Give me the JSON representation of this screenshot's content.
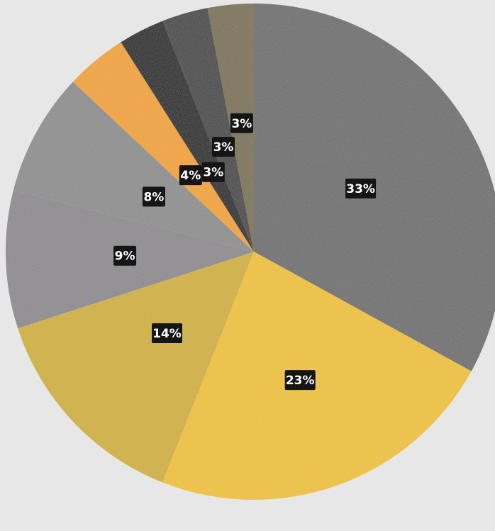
{
  "chart_data": {
    "type": "pie",
    "title": "",
    "start": "12 o'clock",
    "direction": "clockwise",
    "values": [
      33,
      23,
      14,
      9,
      8,
      4,
      3,
      3,
      3
    ],
    "labels": [
      "33%",
      "23%",
      "14%",
      "9%",
      "8%",
      "4%",
      "3%",
      "3%",
      "3%"
    ],
    "colors": [
      "#6f6f6f",
      "#f2c42e",
      "#d3b336",
      "#8f8c91",
      "#909090",
      "#f4a52f",
      "#1e1e1e",
      "#444444",
      "#7d7255"
    ]
  }
}
